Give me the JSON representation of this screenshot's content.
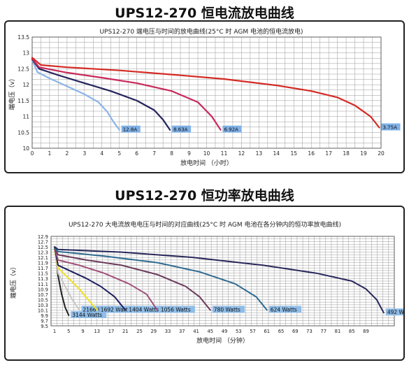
{
  "title_top": "UPS12-270 恒电流放电曲线",
  "title_bottom": "UPS12-270 恒功率放电曲线",
  "chart_data": [
    {
      "type": "line",
      "title": "UPS12-270 端电压与时间的放电曲线(25°C 时 AGM 电池的恒电流放电)",
      "xlabel": "放电时间 （小时）",
      "ylabel": "端电压（v）",
      "xlim": [
        0,
        20
      ],
      "ylim": [
        10,
        13.5
      ],
      "x_ticks": [
        "0",
        "1",
        "2",
        "3",
        "4",
        "5",
        "6",
        "7",
        "8",
        "9",
        "10",
        "11",
        "12",
        "13",
        "14",
        "15",
        "16",
        "17",
        "18",
        "19",
        "20"
      ],
      "y_ticks": [
        "10",
        "10.5",
        "11",
        "11.5",
        "12",
        "12.5",
        "13",
        "13.5"
      ],
      "grid": true,
      "series": [
        {
          "name": "12.8A",
          "color": "#8ab4e8",
          "label_box": "#7fb0e6",
          "points": [
            [
              0,
              12.78
            ],
            [
              0.3,
              12.4
            ],
            [
              1,
              12.2
            ],
            [
              2,
              11.95
            ],
            [
              3,
              11.7
            ],
            [
              3.8,
              11.45
            ],
            [
              4.3,
              11.15
            ],
            [
              4.7,
              10.8
            ],
            [
              5,
              10.58
            ]
          ]
        },
        {
          "name": "8.63A",
          "color": "#23235c",
          "label_box": "#7fb0e6",
          "points": [
            [
              0,
              12.8
            ],
            [
              0.4,
              12.5
            ],
            [
              1.5,
              12.3
            ],
            [
              3,
              12.05
            ],
            [
              4.5,
              11.8
            ],
            [
              6,
              11.5
            ],
            [
              7,
              11.2
            ],
            [
              7.5,
              10.9
            ],
            [
              7.9,
              10.58
            ]
          ]
        },
        {
          "name": "6.92A",
          "color": "#c8285a",
          "label_box": "#7fb0e6",
          "points": [
            [
              0,
              12.82
            ],
            [
              0.4,
              12.55
            ],
            [
              2,
              12.38
            ],
            [
              4,
              12.22
            ],
            [
              6,
              12.05
            ],
            [
              8,
              11.8
            ],
            [
              9.5,
              11.45
            ],
            [
              10.3,
              11.0
            ],
            [
              10.8,
              10.58
            ]
          ]
        },
        {
          "name": "3.75A",
          "color": "#d42a24",
          "label_box": "#7fb0e6",
          "points": [
            [
              0,
              12.85
            ],
            [
              0.5,
              12.62
            ],
            [
              2,
              12.55
            ],
            [
              5,
              12.45
            ],
            [
              8,
              12.32
            ],
            [
              11,
              12.18
            ],
            [
              14,
              11.98
            ],
            [
              16,
              11.8
            ],
            [
              17.5,
              11.6
            ],
            [
              18.5,
              11.35
            ],
            [
              19.4,
              11.0
            ],
            [
              19.9,
              10.65
            ]
          ]
        }
      ]
    },
    {
      "type": "line",
      "title": "UPS12-270 大电流放电电压与时间的对应曲线(25°C 时 AGM 电池在各分钟内的恒功率放电曲线)",
      "xlabel": "放电时间 （分钟）",
      "ylabel": "端电压（v）",
      "xlim": [
        0,
        97
      ],
      "ylim": [
        9.5,
        12.9
      ],
      "x_ticks": [
        "1",
        "5",
        "9",
        "13",
        "17",
        "21",
        "25",
        "29",
        "33",
        "37",
        "41",
        "45",
        "49",
        "53",
        "57",
        "61",
        "65",
        "69",
        "73",
        "77",
        "81",
        "85",
        "89"
      ],
      "y_ticks": [
        "12.9",
        "12.7",
        "12.5",
        "12.3",
        "12.1",
        "11.9",
        "11.7",
        "11.5",
        "11.3",
        "11.1",
        "10.9",
        "10.7",
        "10.5",
        "10.3",
        "10.1",
        "9.9",
        "9.7",
        "9.5"
      ],
      "grid": true,
      "series": [
        {
          "name": "3144 Watts",
          "color": "#222222",
          "label_box": "#8fbde8",
          "points": [
            [
              1,
              12.5
            ],
            [
              2,
              11.4
            ],
            [
              3,
              10.7
            ],
            [
              4,
              10.2
            ],
            [
              5,
              9.9
            ]
          ]
        },
        {
          "name": "2166 Watts",
          "color": "#c8c8c8",
          "label_box": "#8fbde8",
          "points": [
            [
              1,
              12.4
            ],
            [
              2,
              11.5
            ],
            [
              4,
              11.0
            ],
            [
              6,
              10.5
            ],
            [
              8,
              10.1
            ]
          ]
        },
        {
          "name": "1692 Watts",
          "color": "#f0e020",
          "label_box": "#8fbde8",
          "points": [
            [
              1,
              12.4
            ],
            [
              2,
              11.7
            ],
            [
              5,
              11.3
            ],
            [
              8,
              10.9
            ],
            [
              10.5,
              10.5
            ],
            [
              13,
              10.1
            ]
          ]
        },
        {
          "name": "1404 Watts",
          "color": "#1e1e60",
          "label_box": "#8fbde8",
          "points": [
            [
              1,
              12.45
            ],
            [
              2,
              11.8
            ],
            [
              6,
              11.55
            ],
            [
              10,
              11.3
            ],
            [
              14,
              11.0
            ],
            [
              18,
              10.6
            ],
            [
              21,
              10.1
            ]
          ]
        },
        {
          "name": "1056 Watts",
          "color": "#a0507a",
          "label_box": "#8fbde8",
          "points": [
            [
              1,
              12.45
            ],
            [
              2,
              12.0
            ],
            [
              8,
              11.8
            ],
            [
              15,
              11.5
            ],
            [
              22,
              11.1
            ],
            [
              27,
              10.7
            ],
            [
              30,
              10.1
            ]
          ]
        },
        {
          "name": "780 Watts",
          "color": "#6a3a5a",
          "label_box": "#8fbde8",
          "points": [
            [
              1,
              12.45
            ],
            [
              2,
              12.2
            ],
            [
              10,
              12.0
            ],
            [
              20,
              11.8
            ],
            [
              30,
              11.45
            ],
            [
              38,
              11.0
            ],
            [
              42,
              10.6
            ],
            [
              45,
              10.1
            ]
          ]
        },
        {
          "name": "624 Watts",
          "color": "#2e6a90",
          "label_box": "#8fbde8",
          "points": [
            [
              1,
              12.45
            ],
            [
              2,
              12.32
            ],
            [
              15,
              12.15
            ],
            [
              30,
              11.9
            ],
            [
              42,
              11.55
            ],
            [
              52,
              11.1
            ],
            [
              58,
              10.6
            ],
            [
              61,
              10.1
            ]
          ]
        },
        {
          "name": "492 Watts",
          "color": "#26265a",
          "label_box": "#8fbde8",
          "points": [
            [
              1,
              12.5
            ],
            [
              2,
              12.4
            ],
            [
              20,
              12.3
            ],
            [
              40,
              12.1
            ],
            [
              60,
              11.8
            ],
            [
              75,
              11.5
            ],
            [
              85,
              11.2
            ],
            [
              89,
              10.9
            ],
            [
              92,
              10.5
            ],
            [
              94,
              10.0
            ]
          ]
        }
      ]
    }
  ]
}
